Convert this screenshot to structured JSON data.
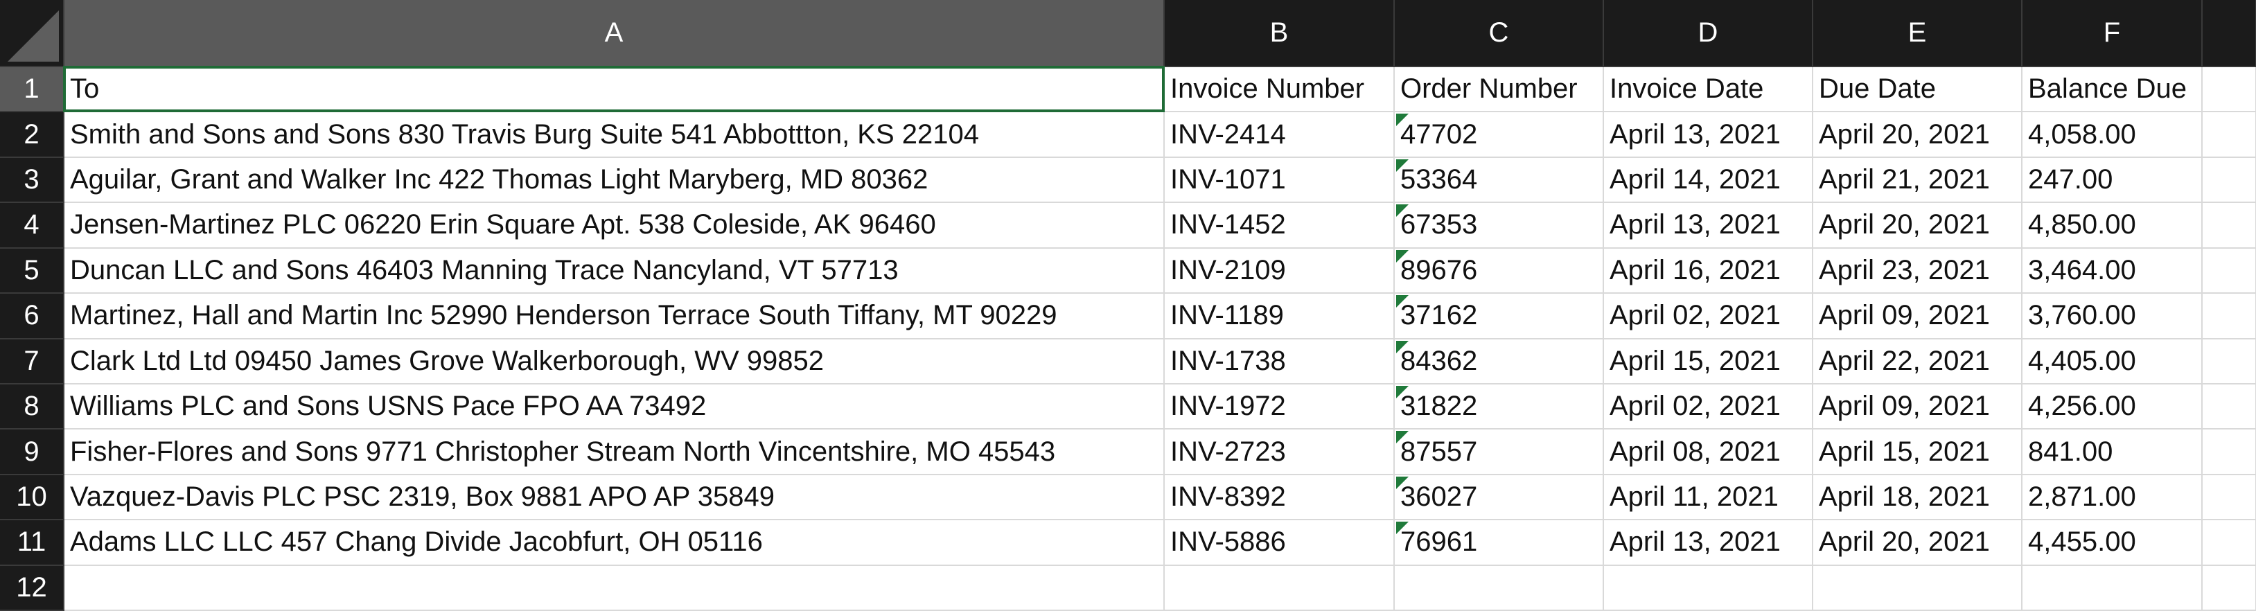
{
  "columns": [
    "A",
    "B",
    "C",
    "D",
    "E",
    "F",
    ""
  ],
  "row_numbers": [
    "1",
    "2",
    "3",
    "4",
    "5",
    "6",
    "7",
    "8",
    "9",
    "10",
    "11",
    "12"
  ],
  "headers": {
    "to": "To",
    "invoice_number": "Invoice Number",
    "order_number": "Order Number",
    "invoice_date": "Invoice Date",
    "due_date": "Due Date",
    "balance_due": "Balance Due"
  },
  "rows": [
    {
      "to": "Smith and Sons and Sons 830 Travis Burg Suite 541 Abbottton, KS 22104",
      "invoice_number": "INV-2414",
      "order_number": "47702",
      "invoice_date": "April 13, 2021",
      "due_date": "April 20, 2021",
      "balance_due": "4,058.00"
    },
    {
      "to": "Aguilar, Grant and Walker Inc 422 Thomas Light Maryberg, MD 80362",
      "invoice_number": "INV-1071",
      "order_number": "53364",
      "invoice_date": "April 14, 2021",
      "due_date": "April 21, 2021",
      "balance_due": "247.00"
    },
    {
      "to": "Jensen-Martinez PLC 06220 Erin Square Apt. 538 Coleside, AK 96460",
      "invoice_number": "INV-1452",
      "order_number": "67353",
      "invoice_date": "April 13, 2021",
      "due_date": "April 20, 2021",
      "balance_due": "4,850.00"
    },
    {
      "to": "Duncan LLC and Sons 46403 Manning Trace Nancyland, VT 57713",
      "invoice_number": "INV-2109",
      "order_number": "89676",
      "invoice_date": "April 16, 2021",
      "due_date": "April 23, 2021",
      "balance_due": "3,464.00"
    },
    {
      "to": "Martinez, Hall and Martin Inc 52990 Henderson Terrace South Tiffany, MT 90229",
      "invoice_number": "INV-1189",
      "order_number": "37162",
      "invoice_date": "April 02, 2021",
      "due_date": "April 09, 2021",
      "balance_due": "3,760.00"
    },
    {
      "to": "Clark Ltd Ltd 09450 James Grove Walkerborough, WV 99852",
      "invoice_number": "INV-1738",
      "order_number": "84362",
      "invoice_date": "April 15, 2021",
      "due_date": "April 22, 2021",
      "balance_due": "4,405.00"
    },
    {
      "to": "Williams PLC and Sons USNS Pace FPO AA 73492",
      "invoice_number": "INV-1972",
      "order_number": "31822",
      "invoice_date": "April 02, 2021",
      "due_date": "April 09, 2021",
      "balance_due": "4,256.00"
    },
    {
      "to": "Fisher-Flores and Sons 9771 Christopher Stream North Vincentshire, MO 45543",
      "invoice_number": "INV-2723",
      "order_number": "87557",
      "invoice_date": "April 08, 2021",
      "due_date": "April 15, 2021",
      "balance_due": "841.00"
    },
    {
      "to": "Vazquez-Davis PLC PSC 2319, Box 9881 APO AP 35849",
      "invoice_number": "INV-8392",
      "order_number": "36027",
      "invoice_date": "April 11, 2021",
      "due_date": "April 18, 2021",
      "balance_due": "2,871.00"
    },
    {
      "to": "Adams LLC LLC 457 Chang Divide Jacobfurt, OH 05116",
      "invoice_number": "INV-5886",
      "order_number": "76961",
      "invoice_date": "April 13, 2021",
      "due_date": "April 20, 2021",
      "balance_due": "4,455.00"
    }
  ],
  "colors": {
    "header_bg": "#1b1b1b",
    "header_selected_bg": "#5a5a5a",
    "active_cell_border": "#1f6b36",
    "text_number_marker": "#1f7a3a",
    "gridline": "#d9d9d9"
  }
}
